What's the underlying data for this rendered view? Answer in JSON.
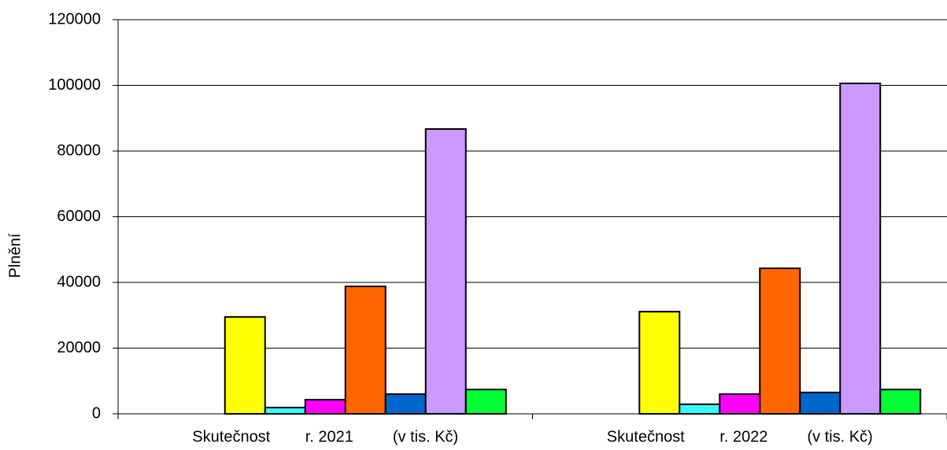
{
  "chart_data": {
    "type": "bar",
    "y_label": "Plnění",
    "categories": [
      "Skutečnost        r. 2021         (v tis. Kč)",
      "Skutečnost        r. 2022         (v tis. Kč)"
    ],
    "series": [
      {
        "color": "#ffffff",
        "values": [
          null,
          null
        ]
      },
      {
        "color": "#ffffff",
        "values": [
          null,
          null
        ]
      },
      {
        "color": "#ffff00",
        "values": [
          29500,
          31100
        ]
      },
      {
        "color": "#33ffff",
        "values": [
          1900,
          2900
        ]
      },
      {
        "color": "#ff00ff",
        "values": [
          4300,
          6000
        ]
      },
      {
        "color": "#ff6600",
        "values": [
          38800,
          44300
        ]
      },
      {
        "color": "#0066cc",
        "values": [
          6000,
          6500
        ]
      },
      {
        "color": "#cc99ff",
        "values": [
          86700,
          100600
        ]
      },
      {
        "color": "#00ff33",
        "values": [
          7400,
          7400
        ]
      }
    ],
    "ylim": [
      0,
      120000
    ],
    "yticks": [
      0,
      20000,
      40000,
      60000,
      80000,
      100000,
      120000
    ],
    "grid": true
  }
}
